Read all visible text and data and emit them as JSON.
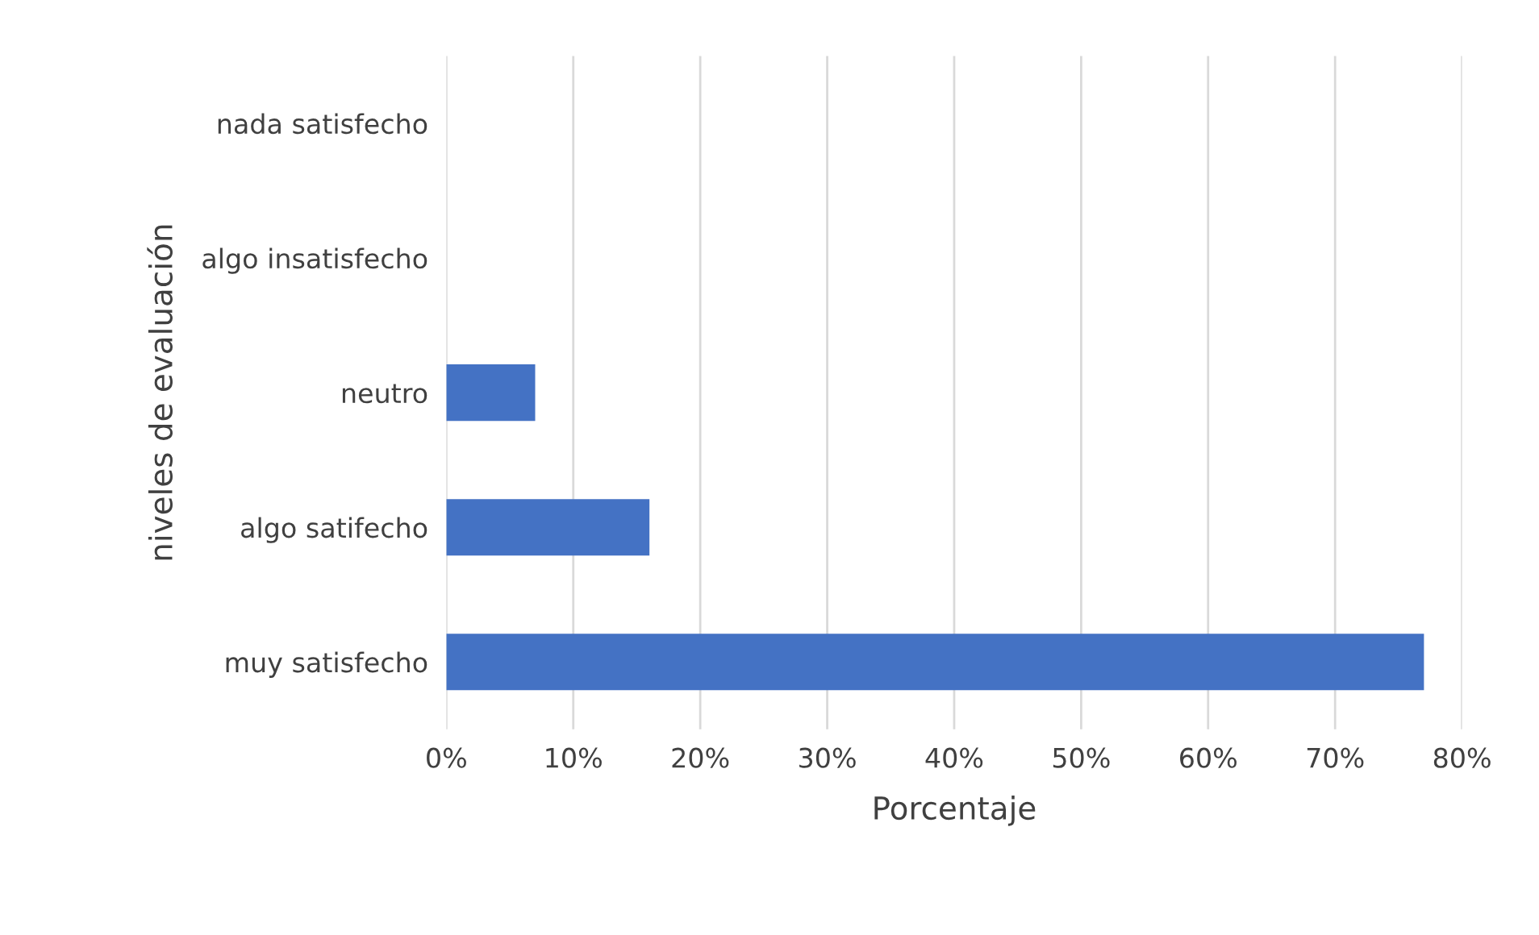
{
  "chart_data": {
    "type": "bar",
    "orientation": "horizontal",
    "xlabel": "Porcentaje",
    "ylabel": "niveles de evaluación",
    "categories": [
      "nada satisfecho",
      "algo insatisfecho",
      "neutro",
      "algo satifecho",
      "muy satisfecho"
    ],
    "values": [
      0,
      0,
      7,
      16,
      77
    ],
    "color": "#4472c4",
    "xlim": [
      0,
      80
    ],
    "xticks": [
      {
        "value": 0,
        "label": "0%"
      },
      {
        "value": 10,
        "label": "10%"
      },
      {
        "value": 20,
        "label": "20%"
      },
      {
        "value": 30,
        "label": "30%"
      },
      {
        "value": 40,
        "label": "40%"
      },
      {
        "value": 50,
        "label": "50%"
      },
      {
        "value": 60,
        "label": "60%"
      },
      {
        "value": 70,
        "label": "70%"
      },
      {
        "value": 80,
        "label": "80%"
      }
    ],
    "grid": "x",
    "legend": false
  }
}
